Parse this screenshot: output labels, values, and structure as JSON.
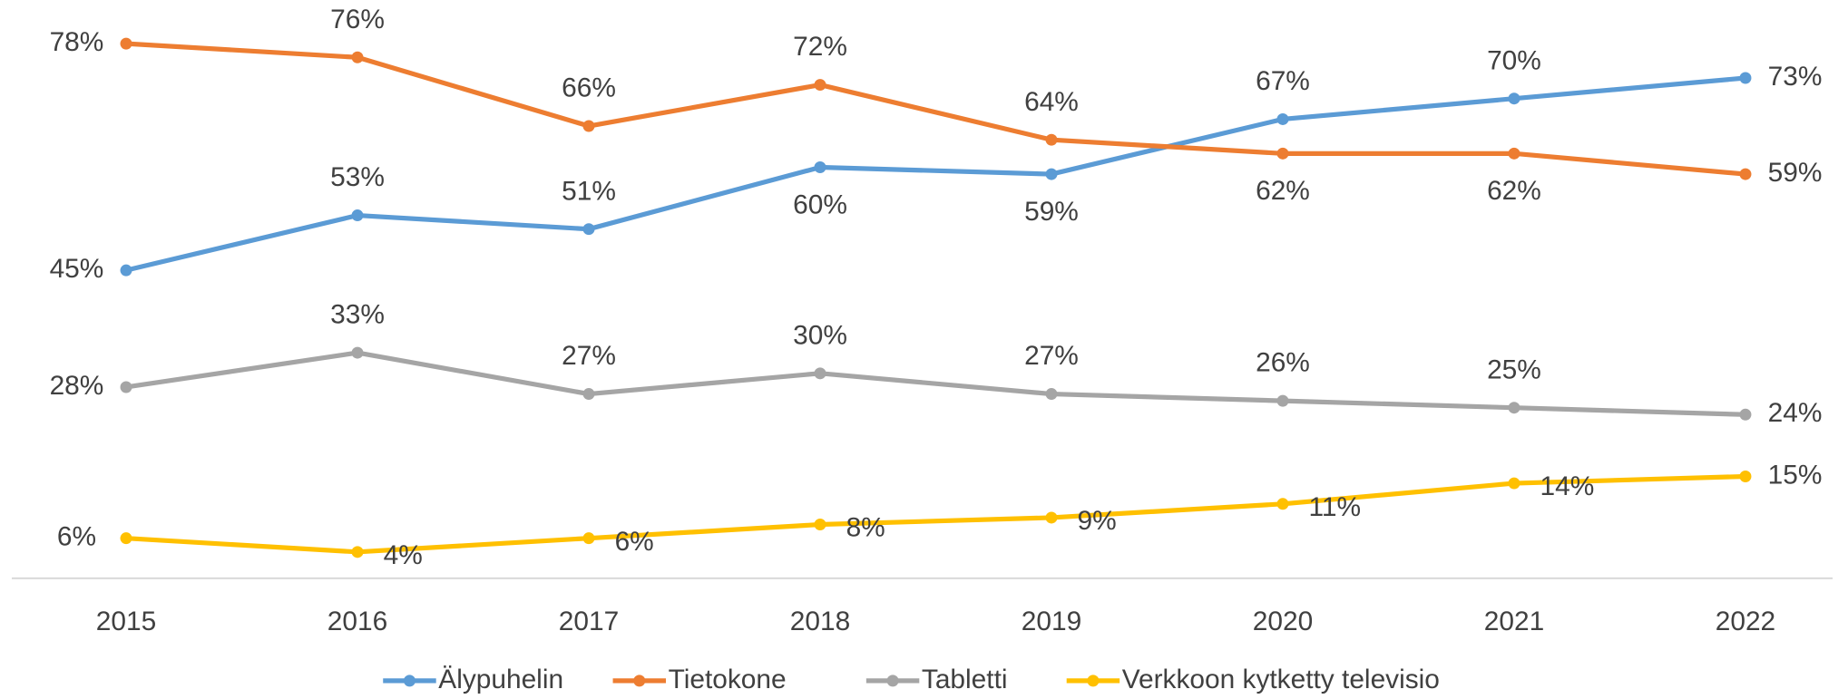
{
  "chart_data": {
    "type": "line",
    "categories": [
      "2015",
      "2016",
      "2017",
      "2018",
      "2019",
      "2020",
      "2021",
      "2022"
    ],
    "series": [
      {
        "name": "Älypuhelin",
        "color": "#5b9bd5",
        "values": [
          45,
          53,
          51,
          60,
          59,
          67,
          70,
          73
        ],
        "value_labels": [
          "45%",
          "53%",
          "51%",
          "60%",
          "59%",
          "67%",
          "70%",
          "73%"
        ]
      },
      {
        "name": "Tietokone",
        "color": "#ed7d31",
        "values": [
          78,
          76,
          66,
          72,
          64,
          62,
          62,
          59
        ],
        "value_labels": [
          "78%",
          "76%",
          "66%",
          "72%",
          "64%",
          "62%",
          "62%",
          "59%"
        ]
      },
      {
        "name": "Tabletti",
        "color": "#a5a5a5",
        "values": [
          28,
          33,
          27,
          30,
          27,
          26,
          25,
          24
        ],
        "value_labels": [
          "28%",
          "33%",
          "27%",
          "30%",
          "27%",
          "26%",
          "25%",
          "24%"
        ]
      },
      {
        "name": "Verkkoon kytketty televisio",
        "color": "#ffc000",
        "values": [
          6,
          4,
          6,
          8,
          9,
          11,
          14,
          15
        ],
        "value_labels": [
          "6%",
          "4%",
          "6%",
          "8%",
          "9%",
          "11%",
          "14%",
          "15%"
        ]
      }
    ],
    "legend": "bottom"
  }
}
